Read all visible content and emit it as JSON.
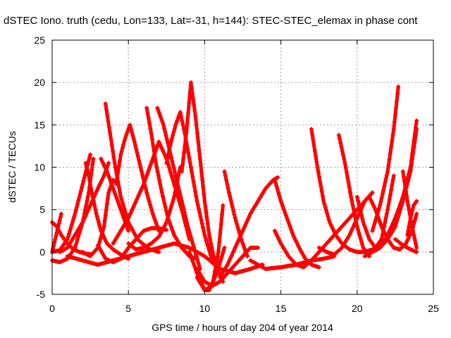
{
  "chart_data": {
    "type": "scatter",
    "title": "dSTEC Iono. truth (cedu, Lon=133, Lat=-31, h=144): STEC-STEC_elemax in phase cont",
    "xlabel": "GPS time / hours of day 204 of year 2014",
    "ylabel": "dSTEC  / TECUs",
    "xlim": [
      0,
      25
    ],
    "ylim": [
      -5,
      25
    ],
    "xticks": [
      "0",
      "5",
      "10",
      "15",
      "20",
      "25"
    ],
    "yticks": [
      "-5",
      "0",
      "5",
      "10",
      "15",
      "20",
      "25"
    ],
    "grid": true,
    "marker": "+",
    "color": "#ff0000",
    "series": [
      {
        "x": [
          0.0,
          0.3,
          0.6,
          1.0,
          1.4,
          1.8,
          2.2,
          2.6
        ],
        "y": [
          3.5,
          3.0,
          2.0,
          1.0,
          0.3,
          0.0,
          -0.2,
          -0.3
        ]
      },
      {
        "x": [
          0.0,
          0.2,
          0.4,
          0.6
        ],
        "y": [
          0.0,
          1.5,
          3.0,
          4.5
        ]
      },
      {
        "x": [
          0.0,
          0.5,
          1.0,
          1.5,
          2.0,
          2.4,
          2.7
        ],
        "y": [
          -1.0,
          -1.2,
          -0.8,
          0.5,
          3.5,
          7.0,
          11.0
        ]
      },
      {
        "x": [
          0.0,
          0.5,
          1.0,
          1.5,
          2.0,
          2.5
        ],
        "y": [
          0.0,
          0.2,
          1.5,
          4.5,
          8.0,
          11.5
        ]
      },
      {
        "x": [
          2.2,
          2.4,
          2.6,
          2.9,
          3.2,
          3.6,
          4.0,
          4.5,
          5.0
        ],
        "y": [
          10.5,
          9.0,
          7.0,
          4.5,
          2.5,
          1.0,
          0.3,
          -0.3,
          -0.8
        ]
      },
      {
        "x": [
          0.5,
          1.0,
          1.5,
          2.0,
          2.5,
          3.0,
          3.4,
          3.7
        ],
        "y": [
          0.0,
          0.5,
          2.0,
          3.5,
          5.5,
          7.5,
          9.0,
          10.5
        ]
      },
      {
        "x": [
          2.0,
          2.5,
          3.0,
          3.4,
          3.7,
          4.0,
          4.3
        ],
        "y": [
          0.0,
          -0.5,
          0.5,
          3.0,
          7.0,
          8.5,
          8.0
        ]
      },
      {
        "x": [
          3.2,
          3.6,
          4.0,
          4.5,
          5.0
        ],
        "y": [
          11.0,
          9.5,
          7.5,
          5.0,
          2.5
        ]
      },
      {
        "x": [
          3.5,
          3.8,
          4.1,
          4.5,
          5.0,
          5.6,
          6.3,
          7.0
        ],
        "y": [
          17.5,
          14.0,
          10.5,
          6.5,
          3.5,
          1.5,
          0.4,
          0.0
        ]
      },
      {
        "x": [
          3.0,
          3.5,
          4.0,
          4.5,
          5.0,
          5.5,
          6.0,
          6.5,
          7.0,
          7.5
        ],
        "y": [
          0.8,
          -0.8,
          -1.2,
          -0.8,
          0.5,
          1.5,
          2.5,
          2.8,
          2.8,
          2.6
        ]
      },
      {
        "x": [
          1.0,
          2.0,
          3.0,
          4.0,
          5.0,
          6.0,
          7.0,
          8.0,
          9.0,
          10.0,
          11.0,
          12.0,
          13.0,
          13.8
        ],
        "y": [
          -0.5,
          -1.0,
          -1.5,
          -1.0,
          -0.5,
          0.0,
          0.5,
          1.0,
          0.5,
          -0.5,
          -2.0,
          -2.5,
          -2.0,
          -1.5
        ]
      },
      {
        "x": [
          4.2,
          4.5,
          4.8,
          5.1,
          5.4,
          5.8,
          6.2,
          6.6,
          7.0
        ],
        "y": [
          8.0,
          11.5,
          13.5,
          15.0,
          13.0,
          10.0,
          7.0,
          4.5,
          2.5
        ]
      },
      {
        "x": [
          4.0,
          4.5,
          5.0,
          5.5,
          6.0,
          6.5,
          7.0,
          7.5,
          8.0,
          8.5,
          9.0
        ],
        "y": [
          1.0,
          2.5,
          4.0,
          6.0,
          8.0,
          10.5,
          13.0,
          11.0,
          8.0,
          5.0,
          1.5
        ]
      },
      {
        "x": [
          5.0,
          5.5,
          6.0,
          6.5,
          7.0,
          7.5,
          8.0,
          8.4
        ],
        "y": [
          1.0,
          0.3,
          0.5,
          1.0,
          1.8,
          3.5,
          6.5,
          10.0
        ]
      },
      {
        "x": [
          6.2,
          6.5,
          6.8,
          7.2,
          7.6,
          8.0,
          8.5,
          9.0,
          9.5
        ],
        "y": [
          17.0,
          14.0,
          10.5,
          7.0,
          4.0,
          2.0,
          0.5,
          -0.5,
          -0.8
        ]
      },
      {
        "x": [
          6.9,
          7.3,
          7.7,
          8.1,
          8.5,
          8.9,
          9.3,
          9.7
        ],
        "y": [
          17.0,
          15.0,
          12.0,
          9.0,
          6.0,
          3.0,
          0.5,
          -2.0
        ]
      },
      {
        "x": [
          7.5,
          7.8,
          8.1,
          8.4,
          8.7,
          9.1,
          9.5,
          10.0,
          10.5
        ],
        "y": [
          10.5,
          13.0,
          15.0,
          16.5,
          14.0,
          10.0,
          6.0,
          2.0,
          -1.0
        ]
      },
      {
        "x": [
          8.5,
          8.8,
          9.1,
          9.4,
          9.7,
          10.0,
          10.3,
          10.7,
          11.2
        ],
        "y": [
          9.5,
          14.0,
          20.0,
          16.0,
          11.0,
          6.0,
          2.0,
          -1.5,
          -3.5
        ]
      },
      {
        "x": [
          9.0,
          9.5,
          10.0,
          10.3,
          10.8,
          11.3
        ],
        "y": [
          0.0,
          -2.5,
          -4.5,
          -4.5,
          -2.5,
          0.5
        ]
      },
      {
        "x": [
          9.5,
          10.0,
          10.5,
          10.9,
          11.2
        ],
        "y": [
          -3.0,
          -4.5,
          -4.0,
          0.0,
          5.5
        ]
      },
      {
        "x": [
          9.5,
          10.0,
          10.5,
          11.0,
          11.5,
          12.0,
          12.5,
          13.0,
          13.5
        ],
        "y": [
          -2.0,
          -3.5,
          -4.0,
          -3.5,
          -2.5,
          -1.5,
          -0.5,
          0.5,
          0.5
        ]
      },
      {
        "x": [
          11.3,
          11.6,
          12.0,
          12.4,
          12.8
        ],
        "y": [
          9.5,
          7.0,
          4.0,
          1.5,
          -0.5
        ]
      },
      {
        "x": [
          11.0,
          11.5,
          12.0,
          12.5,
          13.0,
          13.5,
          14.0,
          14.5,
          14.8
        ],
        "y": [
          -3.0,
          -1.5,
          0.5,
          2.5,
          4.5,
          6.0,
          7.5,
          8.5,
          8.8
        ]
      },
      {
        "x": [
          14.6,
          15.0,
          15.4,
          15.8,
          16.2,
          16.6,
          17.0,
          17.5
        ],
        "y": [
          8.5,
          6.0,
          4.0,
          2.0,
          0.5,
          -0.8,
          -1.5,
          -1.8
        ]
      },
      {
        "x": [
          13.0,
          14.0,
          15.0,
          16.0,
          17.0,
          17.8,
          18.5
        ],
        "y": [
          -1.0,
          -2.0,
          -1.8,
          -1.5,
          -1.0,
          -0.8,
          -0.5
        ]
      },
      {
        "x": [
          14.6,
          15.0,
          15.5,
          16.0,
          16.5,
          17.0,
          17.5,
          18.0,
          18.5,
          19.0,
          19.5,
          20.0,
          20.5,
          21.0
        ],
        "y": [
          2.5,
          1.0,
          -0.5,
          -1.5,
          -1.8,
          -1.0,
          0.0,
          1.0,
          2.0,
          3.0,
          4.0,
          5.0,
          6.0,
          7.0
        ]
      },
      {
        "x": [
          17.0,
          17.4,
          17.8,
          18.2,
          18.6,
          19.0,
          19.5,
          20.0,
          20.5,
          21.0,
          21.5
        ],
        "y": [
          14.5,
          10.0,
          6.0,
          3.5,
          2.0,
          1.0,
          0.3,
          0.0,
          0.0,
          0.3,
          0.5
        ]
      },
      {
        "x": [
          17.5,
          18.0,
          18.5,
          19.0,
          19.5,
          20.0,
          20.5,
          21.0
        ],
        "y": [
          0.5,
          0.0,
          -0.3,
          0.5,
          2.0,
          4.0,
          6.0,
          7.0
        ]
      },
      {
        "x": [
          18.8,
          19.2,
          19.6,
          20.0,
          20.4,
          20.8
        ],
        "y": [
          13.8,
          10.5,
          6.5,
          3.0,
          0.5,
          -0.5
        ]
      },
      {
        "x": [
          20.0,
          20.4,
          20.8,
          21.2,
          21.6,
          22.0,
          22.4
        ],
        "y": [
          6.5,
          3.5,
          1.5,
          0.5,
          1.5,
          5.0,
          9.0
        ]
      },
      {
        "x": [
          20.8,
          21.2,
          21.6,
          22.0,
          22.4,
          22.8,
          23.2,
          23.6,
          23.9
        ],
        "y": [
          6.5,
          5.0,
          3.0,
          1.5,
          0.5,
          0.3,
          1.0,
          2.5,
          4.5
        ]
      },
      {
        "x": [
          20.5,
          21.0,
          21.5,
          22.0,
          22.5,
          23.0,
          23.5,
          23.9
        ],
        "y": [
          -0.5,
          0.0,
          0.5,
          2.0,
          4.0,
          6.5,
          10.0,
          15.5
        ]
      },
      {
        "x": [
          21.0,
          21.5,
          22.0,
          22.4,
          22.7
        ],
        "y": [
          2.5,
          5.5,
          9.5,
          14.5,
          19.5
        ]
      },
      {
        "x": [
          21.5,
          22.0,
          22.5,
          23.0,
          23.5,
          23.9
        ],
        "y": [
          0.5,
          1.5,
          3.0,
          6.0,
          9.5,
          14.5
        ]
      },
      {
        "x": [
          23.0,
          23.3,
          23.6,
          23.9
        ],
        "y": [
          9.5,
          6.0,
          3.0,
          0.5
        ]
      },
      {
        "x": [
          23.3,
          23.5,
          23.7,
          23.9
        ],
        "y": [
          2.0,
          4.0,
          5.5,
          6.0
        ]
      },
      {
        "x": [
          22.5,
          23.0,
          23.5,
          23.9
        ],
        "y": [
          1.5,
          0.8,
          0.3,
          0.0
        ]
      }
    ]
  }
}
